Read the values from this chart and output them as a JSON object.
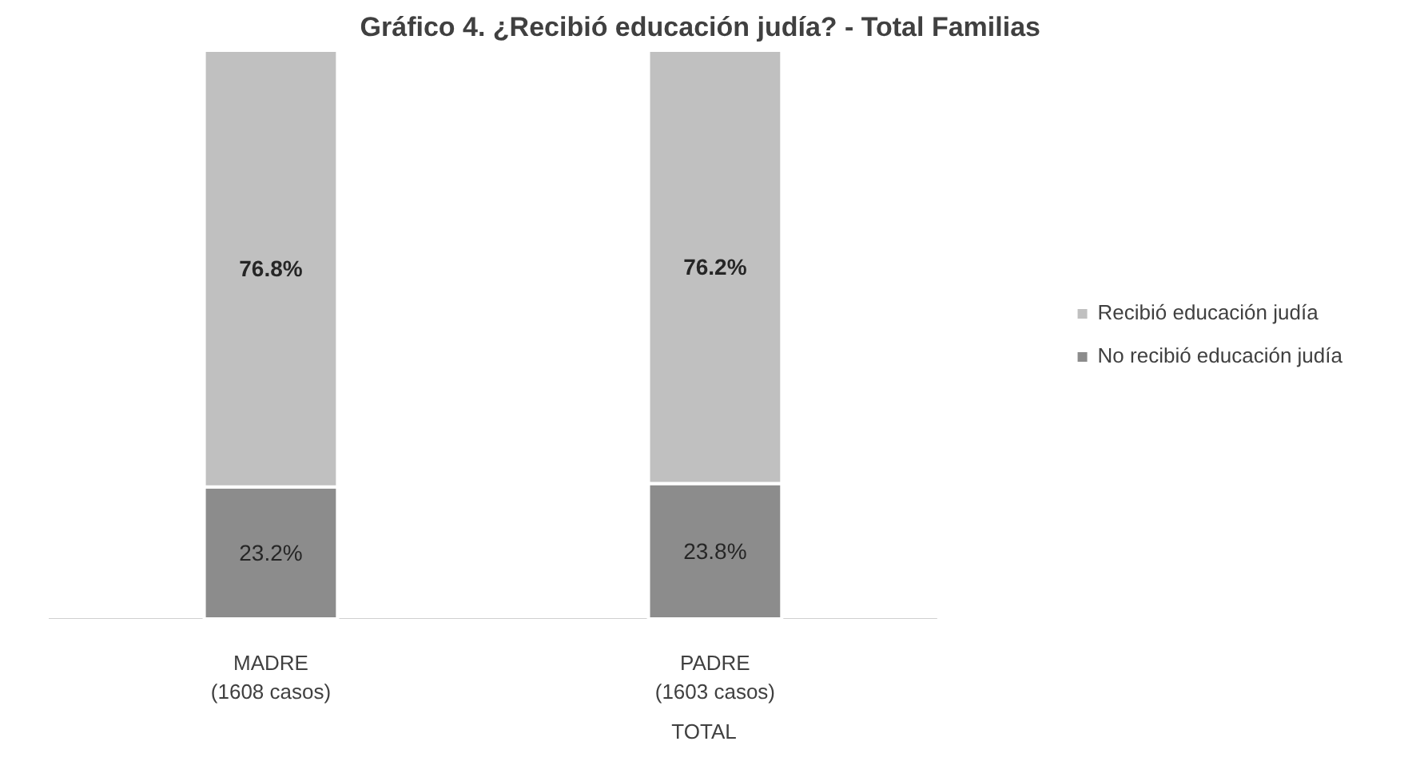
{
  "chart_data": {
    "type": "bar",
    "title": "Gráfico 4.  ¿Recibió educación judía? - Total Familias",
    "categories": [
      "MADRE\n(1608 casos)",
      "PADRE\n(1603 casos)"
    ],
    "stacked": true,
    "legend": "right",
    "annotations": [
      "TOTAL"
    ],
    "series": [
      {
        "name": "No recibió educación judía",
        "color": "#8c8c8c",
        "values": [
          23.2,
          23.8
        ],
        "value_labels": [
          "23.2%",
          "23.8%"
        ]
      },
      {
        "name": "Recibió educación judía",
        "color": "#c0c0c0",
        "values": [
          76.8,
          76.2
        ],
        "value_labels": [
          "76.8%",
          "76.2%"
        ]
      }
    ]
  }
}
